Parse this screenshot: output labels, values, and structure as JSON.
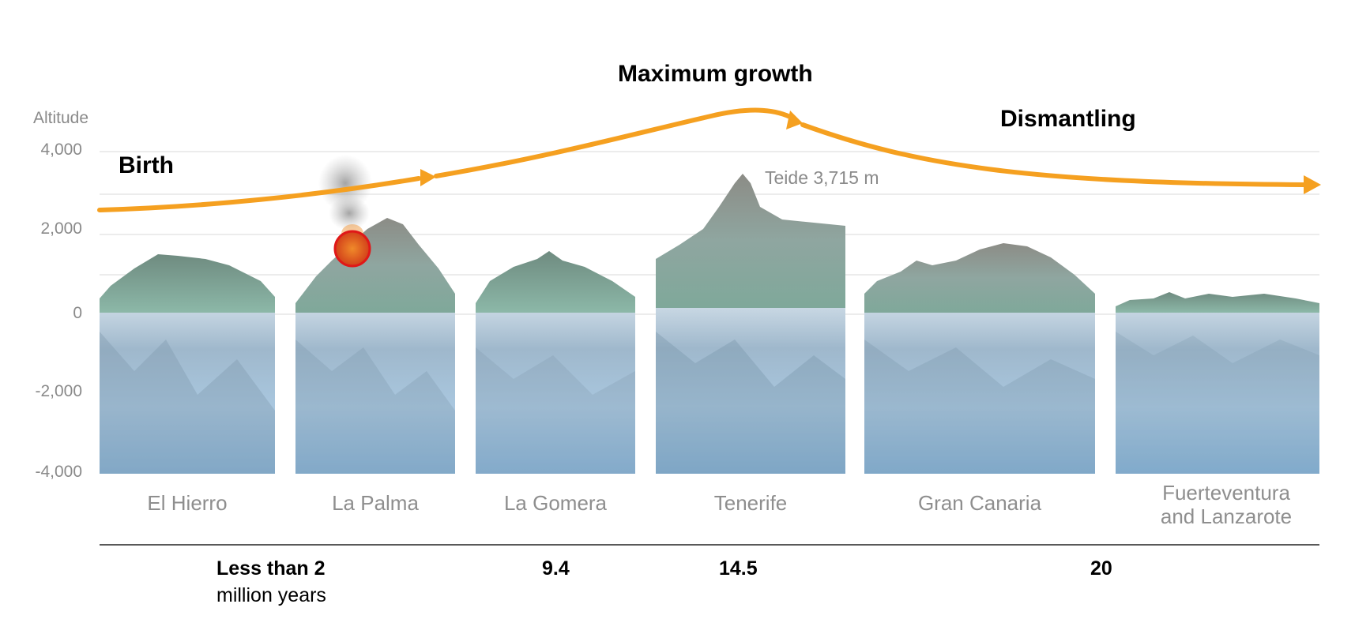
{
  "phases": {
    "birth": "Birth",
    "maximum_growth": "Maximum growth",
    "dismantling": "Dismantling"
  },
  "axis": {
    "title": "Altitude",
    "ticks": [
      "4,000",
      "2,000",
      "0",
      "-2,000",
      "-4,000"
    ]
  },
  "annotation": {
    "teide": "Teide 3,715 m"
  },
  "islands": [
    {
      "name": "El Hierro"
    },
    {
      "name": "La Palma"
    },
    {
      "name": "La Gomera"
    },
    {
      "name": "Tenerife"
    },
    {
      "name": "Gran Canaria"
    },
    {
      "name": "Fuerteventura and Lanzarote",
      "line1": "Fuerteventura",
      "line2": "and Lanzarote"
    }
  ],
  "ages": {
    "young_bold": "Less than 2",
    "young_sub": "million years",
    "gomera": "9.4",
    "tenerife": "14.5",
    "old": "20"
  },
  "colors": {
    "arrow": "#f5a020",
    "sea": "#8cb6d8",
    "land": "#7fa89a",
    "eruption": "#e0401a"
  }
}
